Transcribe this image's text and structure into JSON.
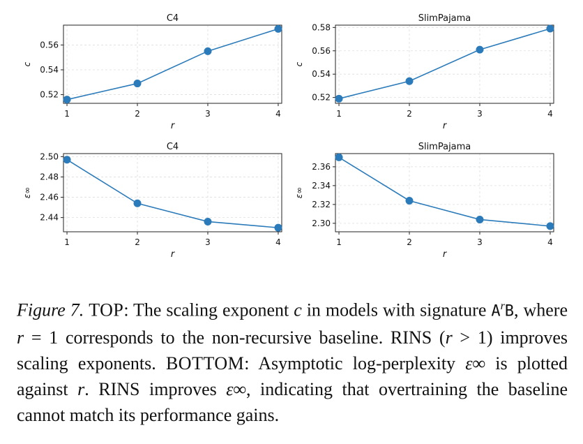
{
  "chart_data": [
    {
      "type": "line",
      "title": "C4",
      "xlabel": "r",
      "ylabel": "c",
      "x": [
        1,
        2,
        3,
        4
      ],
      "values": [
        0.516,
        0.529,
        0.555,
        0.573
      ],
      "ylim": [
        0.513,
        0.576
      ],
      "yticks": [
        0.52,
        0.54,
        0.56
      ],
      "ytick_labels": [
        "0.52",
        "0.54",
        "0.56"
      ],
      "xticks": [
        1,
        2,
        3,
        4
      ],
      "xtick_labels": [
        "1",
        "2",
        "3",
        "4"
      ],
      "grid": true
    },
    {
      "type": "line",
      "title": "SlimPajama",
      "xlabel": "r",
      "ylabel": "c",
      "x": [
        1,
        2,
        3,
        4
      ],
      "values": [
        0.519,
        0.534,
        0.561,
        0.579
      ],
      "ylim": [
        0.515,
        0.582
      ],
      "yticks": [
        0.52,
        0.54,
        0.56,
        0.58
      ],
      "ytick_labels": [
        "0.52",
        "0.54",
        "0.56",
        "0.58"
      ],
      "xticks": [
        1,
        2,
        3,
        4
      ],
      "xtick_labels": [
        "1",
        "2",
        "3",
        "4"
      ],
      "grid": true
    },
    {
      "type": "line",
      "title": "C4",
      "xlabel": "r",
      "ylabel": "ε∞",
      "x": [
        1,
        2,
        3,
        4
      ],
      "values": [
        2.497,
        2.454,
        2.436,
        2.43
      ],
      "ylim": [
        2.426,
        2.503
      ],
      "yticks": [
        2.44,
        2.46,
        2.48,
        2.5
      ],
      "ytick_labels": [
        "2.44",
        "2.46",
        "2.48",
        "2.50"
      ],
      "xticks": [
        1,
        2,
        3,
        4
      ],
      "xtick_labels": [
        "1",
        "2",
        "3",
        "4"
      ],
      "grid": true
    },
    {
      "type": "line",
      "title": "SlimPajama",
      "xlabel": "r",
      "ylabel": "ε∞",
      "x": [
        1,
        2,
        3,
        4
      ],
      "values": [
        2.37,
        2.324,
        2.304,
        2.297
      ],
      "ylim": [
        2.291,
        2.374
      ],
      "yticks": [
        2.3,
        2.32,
        2.34,
        2.36
      ],
      "ytick_labels": [
        "2.30",
        "2.32",
        "2.34",
        "2.36"
      ],
      "xticks": [
        1,
        2,
        3,
        4
      ],
      "xtick_labels": [
        "1",
        "2",
        "3",
        "4"
      ],
      "grid": true
    }
  ],
  "colors": {
    "line": "#2b7bba",
    "marker": "#2b7bba",
    "grid": "#dddddd",
    "axis": "#222222"
  },
  "caption": {
    "label": "Figure 7.",
    "top_tag": "TOP",
    "top_text_1": ": The scaling exponent ",
    "c_sym": "c",
    "top_text_2": " in models with signature ",
    "sig_a": "A",
    "sig_r": "r",
    "sig_b": "B",
    "top_text_3": ", where ",
    "r_sym": "r",
    "top_text_4": " = 1 corresponds to the non-recursive baseline. RINS (",
    "r_sym_2": "r",
    "top_text_5": " > 1) improves scaling exponents. ",
    "bottom_tag": "BOTTOM",
    "bottom_text_1": ": Asymptotic log-perplexity ",
    "eps_sym": "ε∞",
    "bottom_text_2": " is plotted against ",
    "r_sym_3": "r",
    "bottom_text_3": ". RINS improves ",
    "eps_sym_2": "ε∞",
    "bottom_text_4": ", indicating that overtraining the baseline cannot match its performance gains."
  }
}
